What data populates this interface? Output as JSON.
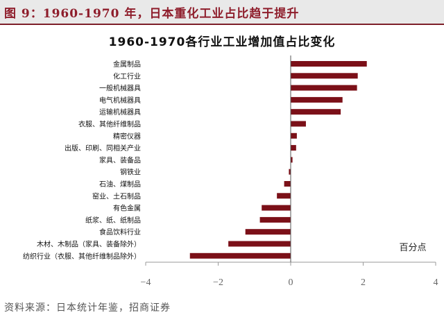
{
  "figure_title": "图 9：1960-1970 年，日本重化工业占比趋于提升",
  "source": "资料来源：日本统计年鉴，招商证券",
  "chart_data": {
    "type": "bar",
    "orientation": "horizontal",
    "title": "1960-1970各行业工业增加值占比变化",
    "unit_label": "百分点",
    "categories": [
      "金属制品",
      "化工行业",
      "一般机械器具",
      "电气机械器具",
      "运输机械器具",
      "衣服、其他纤维制品",
      "精密仪器",
      "出版、印刷、同相关产业",
      "家具、装备品",
      "钢铁业",
      "石油、煤制品",
      "窑业、土石制品",
      "有色金属",
      "纸浆、纸、纸制品",
      "食品饮料行业",
      "木材、木制品（家具、装备除外）",
      "纺织行业（衣服、其他纤维制品除外）"
    ],
    "values": [
      2.1,
      1.85,
      1.83,
      1.43,
      1.38,
      0.42,
      0.17,
      0.15,
      0.05,
      -0.05,
      -0.18,
      -0.38,
      -0.8,
      -0.85,
      -1.25,
      -1.72,
      -2.78
    ],
    "xlim": [
      -4,
      4
    ],
    "xticks": [
      -4,
      -2,
      0,
      2,
      4
    ],
    "bar_color": "#7b1018",
    "axis_color": "#999999"
  }
}
